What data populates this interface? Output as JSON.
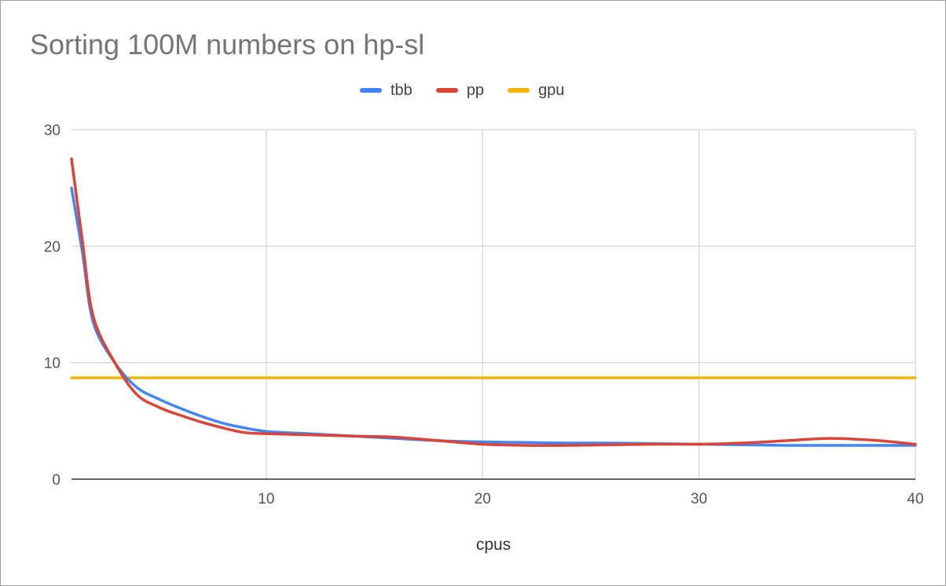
{
  "chart_data": {
    "type": "line",
    "title": "Sorting 100M numbers on hp-sl",
    "xlabel": "cpus",
    "ylabel": "",
    "xlim": [
      1,
      40
    ],
    "ylim": [
      0,
      30
    ],
    "x_ticks": [
      10,
      20,
      30,
      40
    ],
    "y_ticks": [
      0,
      10,
      20,
      30
    ],
    "grid": true,
    "legend_position": "top-center",
    "series": [
      {
        "name": "tbb",
        "color": "#4285f4",
        "x": [
          1,
          1.5,
          2,
          3,
          4,
          5,
          6,
          7,
          8,
          9,
          10,
          12,
          14,
          16,
          18,
          20,
          22,
          24,
          26,
          28,
          30,
          32,
          34,
          36,
          38,
          40
        ],
        "y": [
          25.0,
          19.5,
          13.5,
          10.0,
          7.9,
          6.9,
          6.1,
          5.4,
          4.8,
          4.4,
          4.1,
          3.9,
          3.7,
          3.5,
          3.3,
          3.2,
          3.15,
          3.1,
          3.1,
          3.05,
          3.0,
          2.95,
          2.9,
          2.9,
          2.9,
          2.9
        ]
      },
      {
        "name": "pp",
        "color": "#db4437",
        "x": [
          1,
          1.5,
          2,
          3,
          4,
          5,
          6,
          7,
          8,
          9,
          10,
          12,
          14,
          16,
          18,
          20,
          22,
          24,
          26,
          28,
          30,
          32,
          34,
          36,
          38,
          40
        ],
        "y": [
          27.5,
          20.5,
          14.0,
          10.0,
          7.3,
          6.2,
          5.5,
          4.9,
          4.4,
          4.0,
          3.9,
          3.8,
          3.7,
          3.6,
          3.3,
          3.0,
          2.9,
          2.9,
          2.95,
          3.0,
          3.0,
          3.1,
          3.3,
          3.5,
          3.35,
          3.0
        ]
      },
      {
        "name": "gpu",
        "color": "#f4b400",
        "x": [
          1,
          40
        ],
        "y": [
          8.7,
          8.7
        ]
      }
    ]
  }
}
